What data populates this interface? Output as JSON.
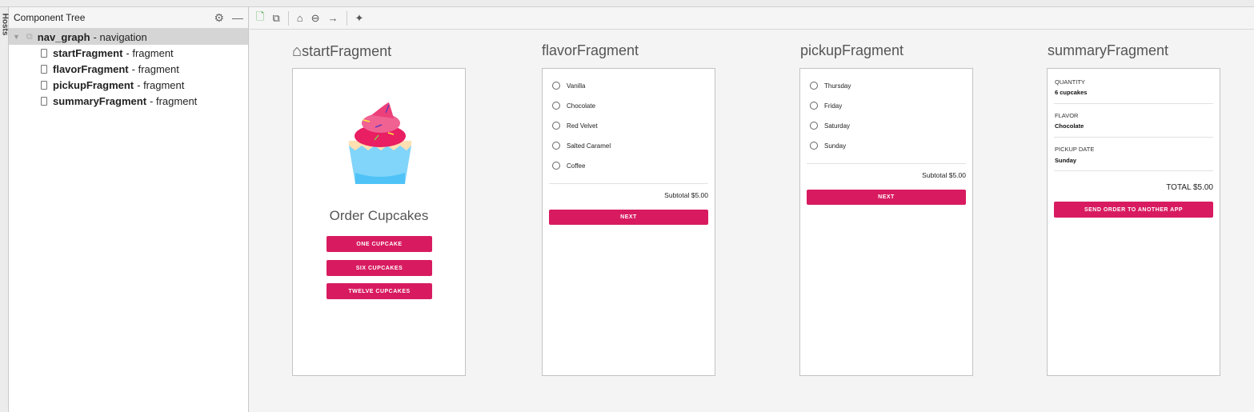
{
  "sidebar_tab": "Hosts",
  "panel": {
    "title": "Component Tree",
    "root": {
      "name": "nav_graph",
      "type": "- navigation"
    },
    "items": [
      {
        "name": "startFragment",
        "type": "- fragment"
      },
      {
        "name": "flavorFragment",
        "type": "- fragment"
      },
      {
        "name": "pickupFragment",
        "type": "- fragment"
      },
      {
        "name": "summaryFragment",
        "type": "- fragment"
      }
    ]
  },
  "accent": "#d81b60",
  "start": {
    "title": "startFragment",
    "heading": "Order Cupcakes",
    "buttons": [
      "ONE CUPCAKE",
      "SIX CUPCAKES",
      "TWELVE CUPCAKES"
    ]
  },
  "flavor": {
    "title": "flavorFragment",
    "options": [
      "Vanilla",
      "Chocolate",
      "Red Velvet",
      "Salted Caramel",
      "Coffee"
    ],
    "subtotal": "Subtotal $5.00",
    "next": "NEXT"
  },
  "pickup": {
    "title": "pickupFragment",
    "options": [
      "Thursday",
      "Friday",
      "Saturday",
      "Sunday"
    ],
    "subtotal": "Subtotal $5.00",
    "next": "NEXT"
  },
  "summary": {
    "title": "summaryFragment",
    "quantity_label": "QUANTITY",
    "quantity": "6 cupcakes",
    "flavor_label": "FLAVOR",
    "flavor": "Chocolate",
    "date_label": "PICKUP DATE",
    "date": "Sunday",
    "total": "TOTAL $5.00",
    "send": "SEND ORDER TO ANOTHER APP"
  }
}
